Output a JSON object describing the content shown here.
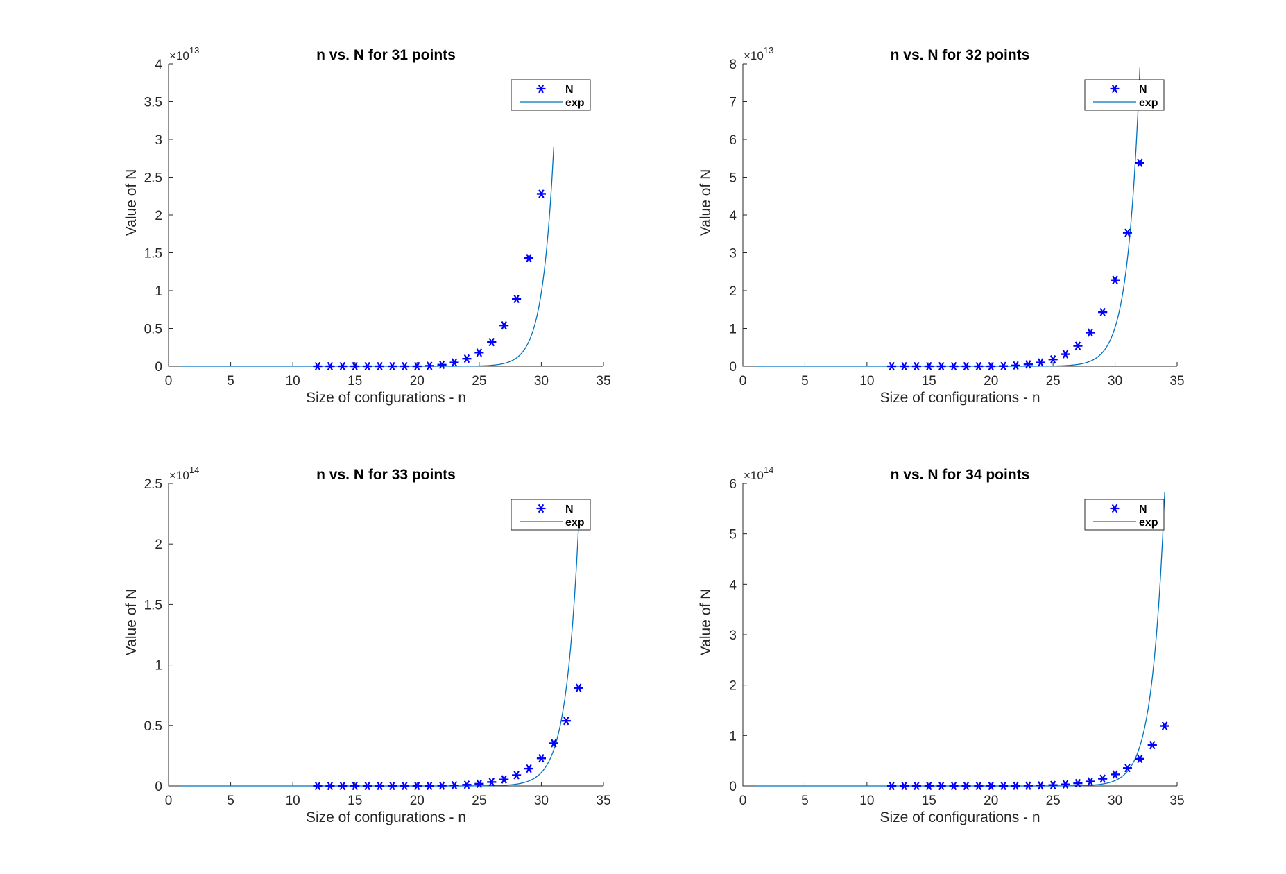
{
  "colors": {
    "markers": "#0000ff",
    "line": "#0072bd",
    "axes": "#262626"
  },
  "chart_data": [
    {
      "type": "scatter",
      "title": "n vs. N for 31 points",
      "xlabel": "Size of configurations - n",
      "ylabel": "Value of N",
      "xlim": [
        0,
        35
      ],
      "ylim": [
        0,
        40000000000000
      ],
      "x_ticks": [
        "0",
        "5",
        "10",
        "15",
        "20",
        "25",
        "30",
        "35"
      ],
      "y_ticks": [
        "0",
        "0.5",
        "1",
        "1.5",
        "2",
        "2.5",
        "3",
        "3.5",
        "4"
      ],
      "y_exponent": "13",
      "legend": [
        "N",
        "exp"
      ],
      "legend_position": "top-right",
      "series": [
        {
          "name": "N",
          "marker": "asterisk",
          "x": [
            12,
            13,
            14,
            15,
            16,
            17,
            18,
            19,
            20,
            21,
            22,
            23,
            24,
            25,
            26,
            27,
            28,
            29,
            30
          ],
          "y": [
            0,
            0,
            0,
            0,
            0,
            0,
            0,
            0,
            0,
            50000000000,
            200000000000,
            500000000000,
            1000000000000,
            1800000000000,
            3200000000000,
            5400000000000,
            8900000000000,
            14300000000000,
            22800000000000
          ]
        },
        {
          "name": "exp",
          "line": true,
          "x": [
            1,
            2,
            3,
            4,
            5,
            6,
            7,
            8,
            9,
            10,
            11,
            12,
            13,
            14,
            15,
            16,
            17,
            18,
            19,
            20,
            21,
            22,
            23,
            24,
            25,
            26,
            27,
            28,
            29,
            30,
            31
          ],
          "y": [
            1.60934,
            4.7935,
            14.2778,
            42.5271,
            126.6714,
            377.3056,
            1123.7989,
            3347.2764,
            9970.0023,
            29696.5686,
            88451.913,
            263461.2546,
            784732.8062,
            2337345.6198,
            6962,
            20738,
            61768,
            183980,
            547990,
            1632200,
            4861600,
            14481000,
            43131000,
            128470000,
            382650000,
            1139700000,
            3394800000,
            10112000000,
            30118000000,
            89709000000,
            29000000000000
          ]
        }
      ]
    },
    {
      "type": "scatter",
      "title": "n vs. N for 32 points",
      "xlabel": "Size of configurations - n",
      "ylabel": "Value of N",
      "xlim": [
        0,
        35
      ],
      "ylim": [
        0,
        80000000000000
      ],
      "x_ticks": [
        "0",
        "5",
        "10",
        "15",
        "20",
        "25",
        "30",
        "35"
      ],
      "y_ticks": [
        "0",
        "1",
        "2",
        "3",
        "4",
        "5",
        "6",
        "7",
        "8"
      ],
      "y_exponent": "13",
      "legend": [
        "N",
        "exp"
      ],
      "legend_position": "top-right",
      "series": [
        {
          "name": "N",
          "marker": "asterisk",
          "x": [
            12,
            13,
            14,
            15,
            16,
            17,
            18,
            19,
            20,
            21,
            22,
            23,
            24,
            25,
            26,
            27,
            28,
            29,
            30,
            31,
            32
          ],
          "y": [
            0,
            0,
            0,
            0,
            0,
            0,
            0,
            0,
            0,
            50000000000,
            200000000000,
            500000000000,
            1000000000000,
            1800000000000,
            3200000000000,
            5400000000000,
            8900000000000,
            14300000000000,
            22800000000000,
            35300000000000,
            53800000000000
          ]
        },
        {
          "name": "exp",
          "line": true,
          "x": [
            1,
            32
          ],
          "y": [
            0,
            79000000000000
          ]
        }
      ]
    },
    {
      "type": "scatter",
      "title": "n vs. N for 33 points",
      "xlabel": "Size of configurations - n",
      "ylabel": "Value of N",
      "xlim": [
        0,
        35
      ],
      "ylim": [
        0,
        250000000000000
      ],
      "x_ticks": [
        "0",
        "5",
        "10",
        "15",
        "20",
        "25",
        "30",
        "35"
      ],
      "y_ticks": [
        "0",
        "0.5",
        "1",
        "1.5",
        "2",
        "2.5"
      ],
      "y_exponent": "14",
      "legend": [
        "N",
        "exp"
      ],
      "legend_position": "top-right",
      "series": [
        {
          "name": "N",
          "marker": "asterisk",
          "x": [
            12,
            13,
            14,
            15,
            16,
            17,
            18,
            19,
            20,
            21,
            22,
            23,
            24,
            25,
            26,
            27,
            28,
            29,
            30,
            31,
            32,
            33
          ],
          "y": [
            0,
            0,
            0,
            0,
            0,
            0,
            0,
            0,
            0,
            50000000000,
            200000000000,
            500000000000,
            1000000000000,
            1800000000000,
            3200000000000,
            5400000000000,
            8900000000000,
            14300000000000,
            22800000000000,
            35300000000000,
            53800000000000,
            81000000000000
          ]
        },
        {
          "name": "exp",
          "line": true,
          "x": [
            1,
            33
          ],
          "y": [
            0,
            216000000000000
          ]
        }
      ]
    },
    {
      "type": "scatter",
      "title": "n vs. N for 34 points",
      "xlabel": "Size of configurations - n",
      "ylabel": "Value of N",
      "xlim": [
        0,
        35
      ],
      "ylim": [
        0,
        600000000000000
      ],
      "x_ticks": [
        "0",
        "5",
        "10",
        "15",
        "20",
        "25",
        "30",
        "35"
      ],
      "y_ticks": [
        "0",
        "1",
        "2",
        "3",
        "4",
        "5",
        "6"
      ],
      "y_exponent": "14",
      "legend": [
        "N",
        "exp"
      ],
      "legend_position": "top-right",
      "series": [
        {
          "name": "N",
          "marker": "asterisk",
          "x": [
            12,
            13,
            14,
            15,
            16,
            17,
            18,
            19,
            20,
            21,
            22,
            23,
            24,
            25,
            26,
            27,
            28,
            29,
            30,
            31,
            32,
            33,
            34
          ],
          "y": [
            0,
            0,
            0,
            0,
            0,
            0,
            0,
            0,
            0,
            50000000000,
            200000000000,
            500000000000,
            1000000000000,
            1800000000000,
            3200000000000,
            5400000000000,
            8900000000000,
            14300000000000,
            22800000000000,
            35300000000000,
            53800000000000,
            81000000000000,
            119000000000000
          ]
        },
        {
          "name": "exp",
          "line": true,
          "x": [
            1,
            34
          ],
          "y": [
            0,
            582000000000000
          ]
        }
      ]
    }
  ]
}
